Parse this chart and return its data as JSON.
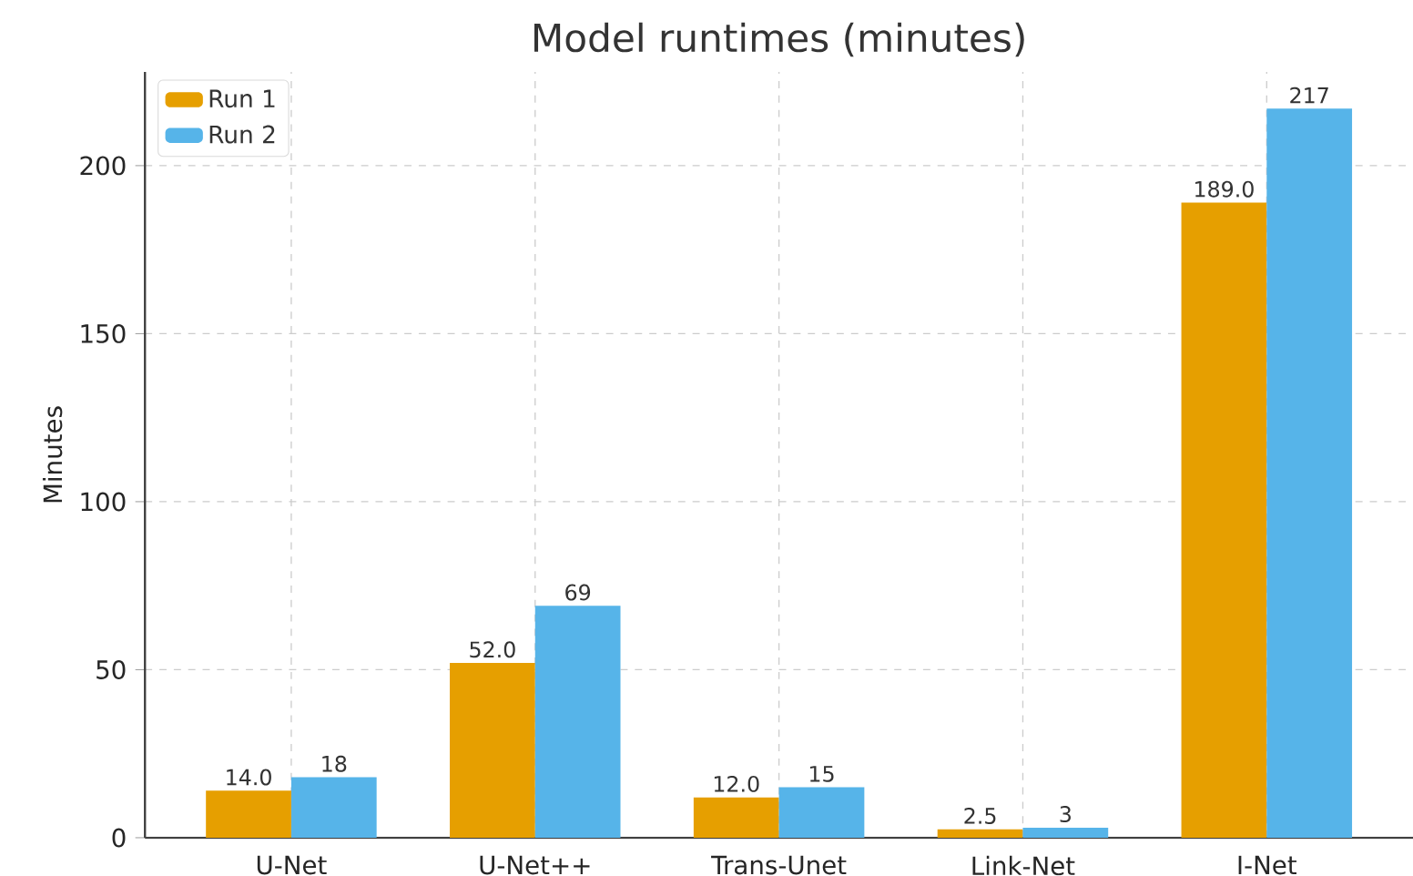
{
  "chart_data": {
    "type": "bar",
    "title": "Model runtimes (minutes)",
    "ylabel": "Minutes",
    "categories": [
      "U-Net",
      "U-Net++",
      "Trans-Unet",
      "Link-Net",
      "I-Net"
    ],
    "series": [
      {
        "name": "Run 1",
        "color": "#e69f00",
        "values": [
          14.0,
          52.0,
          12.0,
          2.5,
          189.0
        ],
        "value_labels": [
          "14.0",
          "52.0",
          "12.0",
          "2.5",
          "189.0"
        ]
      },
      {
        "name": "Run 2",
        "color": "#56b4e9",
        "values": [
          18,
          69,
          15,
          3,
          217
        ],
        "value_labels": [
          "18",
          "69",
          "15",
          "3",
          "217"
        ]
      }
    ],
    "ylim": [
      0,
      227.85
    ],
    "yticks": [
      0,
      50,
      100,
      150,
      200
    ],
    "grid": true,
    "legend": "top left"
  }
}
